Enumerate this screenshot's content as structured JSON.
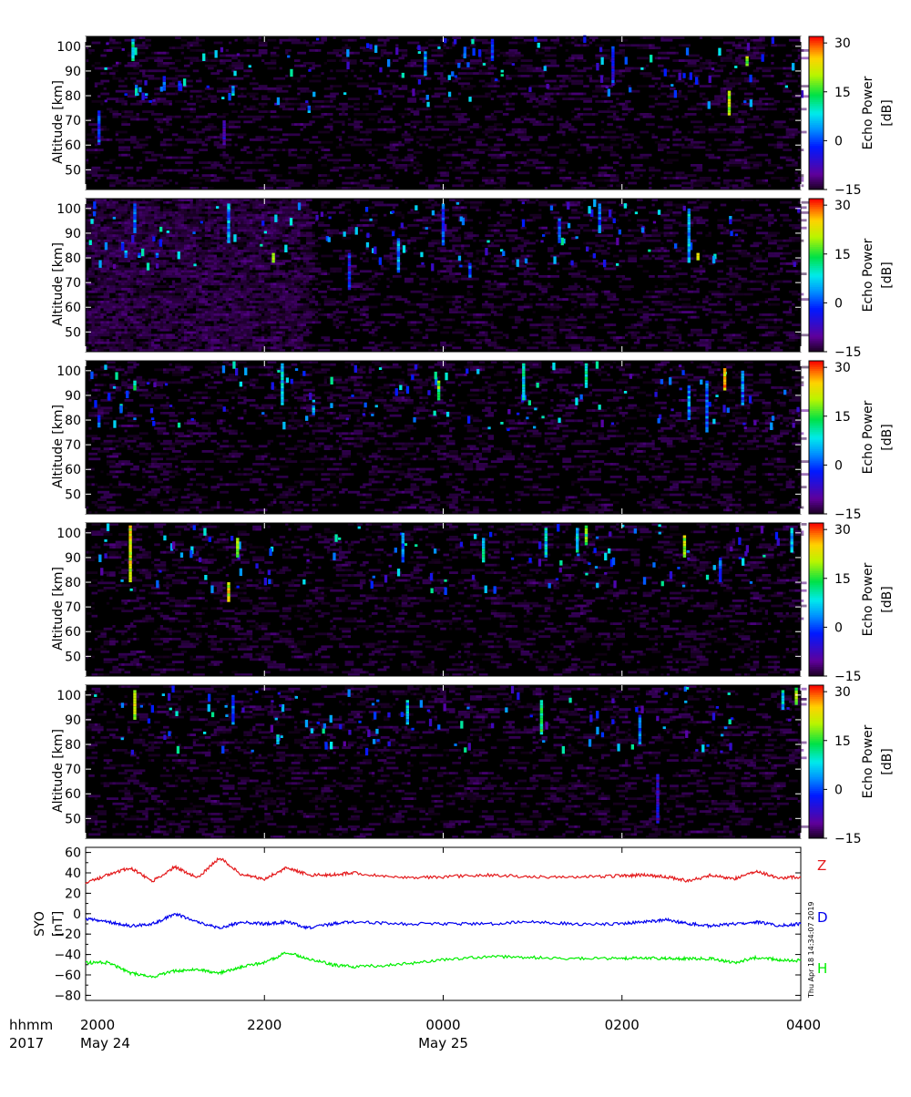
{
  "chart_data": [
    {
      "type": "heatmap",
      "panel": 1,
      "ylabel": "Altitude [km]",
      "ylim": [
        42,
        104
      ],
      "yticks": [
        50,
        60,
        70,
        80,
        90,
        100
      ],
      "colorbar": {
        "label_line1": "Echo Power",
        "label_line2": "[dB]",
        "range": [
          -15,
          32
        ],
        "ticks": [
          -15,
          0,
          15,
          30
        ]
      },
      "features": [
        {
          "time": 20.15,
          "alt": [
            60,
            74
          ],
          "db": 3
        },
        {
          "time": 20.45,
          "alt": [
            80,
            81
          ],
          "db": 5
        },
        {
          "time": 20.58,
          "alt": [
            80,
            81
          ],
          "db": 10
        },
        {
          "time": 20.68,
          "alt": [
            80,
            81
          ],
          "db": 8
        },
        {
          "time": 20.53,
          "alt": [
            94,
            103
          ],
          "db": 14
        },
        {
          "time": 20.88,
          "alt": [
            82,
            88
          ],
          "db": 5
        },
        {
          "time": 21.05,
          "alt": [
            82,
            86
          ],
          "db": 6
        },
        {
          "time": 21.55,
          "alt": [
            60,
            70
          ],
          "db": -3
        },
        {
          "time": 21.65,
          "alt": [
            80,
            84
          ],
          "db": 10
        },
        {
          "time": 22.5,
          "alt": [
            73,
            76
          ],
          "db": 8
        },
        {
          "time": 23.8,
          "alt": [
            88,
            98
          ],
          "db": 7
        },
        {
          "time": 24.55,
          "alt": [
            94,
            103
          ],
          "db": 4
        },
        {
          "time": 25.9,
          "alt": [
            84,
            100
          ],
          "db": 2
        },
        {
          "time": 27.2,
          "alt": [
            72,
            82
          ],
          "db": 26
        },
        {
          "time": 27.4,
          "alt": [
            92,
            96
          ],
          "db": 25
        }
      ]
    },
    {
      "type": "heatmap",
      "panel": 2,
      "ylabel": "Altitude [km]",
      "ylim": [
        42,
        104
      ],
      "yticks": [
        50,
        60,
        70,
        80,
        90,
        100
      ],
      "colorbar": {
        "label_line1": "Echo Power",
        "label_line2": "[dB]",
        "range": [
          -15,
          32
        ],
        "ticks": [
          -15,
          0,
          15,
          30
        ]
      },
      "features": [
        {
          "time": 20.45,
          "alt": [
            80,
            83
          ],
          "db": 10
        },
        {
          "time": 20.6,
          "alt": [
            80,
            82
          ],
          "db": 8
        },
        {
          "time": 20.8,
          "alt": [
            80,
            82
          ],
          "db": 6
        },
        {
          "time": 20.55,
          "alt": [
            90,
            102
          ],
          "db": 6
        },
        {
          "time": 21.6,
          "alt": [
            86,
            102
          ],
          "db": 9
        },
        {
          "time": 22.1,
          "alt": [
            78,
            82
          ],
          "db": 22
        },
        {
          "time": 22.95,
          "alt": [
            67,
            82
          ],
          "db": 2
        },
        {
          "time": 23.5,
          "alt": [
            74,
            88
          ],
          "db": 8
        },
        {
          "time": 24.0,
          "alt": [
            85,
            102
          ],
          "db": 5
        },
        {
          "time": 24.3,
          "alt": [
            72,
            78
          ],
          "db": 4
        },
        {
          "time": 25.3,
          "alt": [
            86,
            96
          ],
          "db": 4
        },
        {
          "time": 25.75,
          "alt": [
            90,
            102
          ],
          "db": 7
        },
        {
          "time": 26.75,
          "alt": [
            78,
            100
          ],
          "db": 10
        },
        {
          "time": 26.85,
          "alt": [
            79,
            82
          ],
          "db": 25
        }
      ]
    },
    {
      "type": "heatmap",
      "panel": 3,
      "ylabel": "Altitude [km]",
      "ylim": [
        42,
        104
      ],
      "yticks": [
        50,
        60,
        70,
        80,
        90,
        100
      ],
      "colorbar": {
        "label_line1": "Echo Power",
        "label_line2": "[dB]",
        "range": [
          -15,
          32
        ],
        "ticks": [
          -15,
          0,
          15,
          30
        ]
      },
      "features": [
        {
          "time": 20.15,
          "alt": [
            77,
            82
          ],
          "db": 5
        },
        {
          "time": 20.55,
          "alt": [
            80,
            81
          ],
          "db": 4
        },
        {
          "time": 20.75,
          "alt": [
            80,
            81
          ],
          "db": 3
        },
        {
          "time": 20.55,
          "alt": [
            92,
            96
          ],
          "db": 16
        },
        {
          "time": 22.2,
          "alt": [
            86,
            103
          ],
          "db": 12
        },
        {
          "time": 22.55,
          "alt": [
            82,
            86
          ],
          "db": 11
        },
        {
          "time": 23.95,
          "alt": [
            88,
            96
          ],
          "db": 20
        },
        {
          "time": 24.9,
          "alt": [
            88,
            103
          ],
          "db": 13
        },
        {
          "time": 25.6,
          "alt": [
            93,
            103
          ],
          "db": 14
        },
        {
          "time": 26.75,
          "alt": [
            80,
            94
          ],
          "db": 8
        },
        {
          "time": 26.95,
          "alt": [
            75,
            96
          ],
          "db": 5
        },
        {
          "time": 27.15,
          "alt": [
            92,
            101
          ],
          "db": 30
        },
        {
          "time": 27.35,
          "alt": [
            86,
            100
          ],
          "db": 6
        }
      ]
    },
    {
      "type": "heatmap",
      "panel": 4,
      "ylabel": "Altitude [km]",
      "ylim": [
        42,
        104
      ],
      "yticks": [
        50,
        60,
        70,
        80,
        90,
        100
      ],
      "colorbar": {
        "label_line1": "Echo Power",
        "label_line2": "[dB]",
        "range": [
          -15,
          32
        ],
        "ticks": [
          -15,
          0,
          15,
          30
        ]
      },
      "features": [
        {
          "time": 20.5,
          "alt": [
            80,
            103
          ],
          "db": 27
        },
        {
          "time": 21.6,
          "alt": [
            72,
            80
          ],
          "db": 28
        },
        {
          "time": 21.7,
          "alt": [
            90,
            98
          ],
          "db": 22
        },
        {
          "time": 23.55,
          "alt": [
            88,
            100
          ],
          "db": 7
        },
        {
          "time": 24.45,
          "alt": [
            88,
            98
          ],
          "db": 14
        },
        {
          "time": 25.15,
          "alt": [
            90,
            102
          ],
          "db": 12
        },
        {
          "time": 25.5,
          "alt": [
            92,
            102
          ],
          "db": 13
        },
        {
          "time": 25.6,
          "alt": [
            95,
            103
          ],
          "db": 20
        },
        {
          "time": 26.7,
          "alt": [
            90,
            99
          ],
          "db": 26
        },
        {
          "time": 27.1,
          "alt": [
            80,
            90
          ],
          "db": 4
        },
        {
          "time": 27.9,
          "alt": [
            92,
            102
          ],
          "db": 10
        }
      ]
    },
    {
      "type": "heatmap",
      "panel": 5,
      "ylabel": "Altitude [km]",
      "ylim": [
        42,
        104
      ],
      "yticks": [
        50,
        60,
        70,
        80,
        90,
        100
      ],
      "colorbar": {
        "label_line1": "Echo Power",
        "label_line2": "[dB]",
        "range": [
          -15,
          32
        ],
        "ticks": [
          -15,
          0,
          15,
          30
        ]
      },
      "features": [
        {
          "time": 20.55,
          "alt": [
            90,
            102
          ],
          "db": 25
        },
        {
          "time": 21.65,
          "alt": [
            88,
            100
          ],
          "db": 6
        },
        {
          "time": 22.15,
          "alt": [
            80,
            84
          ],
          "db": 10
        },
        {
          "time": 23.6,
          "alt": [
            88,
            98
          ],
          "db": 10
        },
        {
          "time": 25.1,
          "alt": [
            84,
            98
          ],
          "db": 18
        },
        {
          "time": 26.2,
          "alt": [
            80,
            92
          ],
          "db": 6
        },
        {
          "time": 26.4,
          "alt": [
            48,
            68
          ],
          "db": -2
        },
        {
          "time": 27.8,
          "alt": [
            94,
            102
          ],
          "db": 12
        },
        {
          "time": 27.95,
          "alt": [
            96,
            103
          ],
          "db": 24
        }
      ]
    },
    {
      "type": "line",
      "panel": 6,
      "ylabel_line1": "SYO",
      "ylabel_line2": "[nT]",
      "ylim": [
        -85,
        65
      ],
      "yticks": [
        -80,
        -60,
        -40,
        -20,
        0,
        20,
        40,
        60
      ],
      "series": [
        {
          "name": "Z",
          "color": "#e41a1c",
          "x": [
            20.0,
            20.25,
            20.5,
            20.75,
            21.0,
            21.25,
            21.5,
            21.75,
            22.0,
            22.25,
            22.5,
            22.75,
            23.0,
            23.5,
            24.0,
            24.5,
            25.0,
            25.5,
            26.0,
            26.25,
            26.5,
            26.75,
            27.0,
            27.25,
            27.5,
            27.75,
            28.0
          ],
          "y": [
            30,
            38,
            45,
            32,
            46,
            35,
            55,
            38,
            34,
            45,
            38,
            38,
            40,
            35,
            36,
            38,
            36,
            36,
            37,
            38,
            36,
            32,
            38,
            34,
            42,
            35,
            36
          ]
        },
        {
          "name": "D",
          "color": "#0000ee",
          "x": [
            20.0,
            20.25,
            20.5,
            20.75,
            21.0,
            21.25,
            21.5,
            21.75,
            22.0,
            22.25,
            22.5,
            22.75,
            23.0,
            23.5,
            24.0,
            24.5,
            25.0,
            25.5,
            26.0,
            26.25,
            26.5,
            26.75,
            27.0,
            27.25,
            27.5,
            27.75,
            28.0
          ],
          "y": [
            -5,
            -8,
            -12,
            -10,
            0,
            -8,
            -14,
            -8,
            -10,
            -8,
            -14,
            -10,
            -8,
            -10,
            -10,
            -10,
            -8,
            -10,
            -10,
            -8,
            -6,
            -10,
            -12,
            -10,
            -8,
            -12,
            -10
          ]
        },
        {
          "name": "H",
          "color": "#00ee00",
          "x": [
            20.0,
            20.25,
            20.5,
            20.75,
            21.0,
            21.25,
            21.5,
            21.75,
            22.0,
            22.25,
            22.5,
            22.75,
            23.0,
            23.5,
            24.0,
            24.5,
            25.0,
            25.5,
            26.0,
            26.25,
            26.5,
            26.75,
            27.0,
            27.25,
            27.5,
            27.75,
            28.0
          ],
          "y": [
            -48,
            -48,
            -58,
            -62,
            -56,
            -55,
            -58,
            -52,
            -48,
            -38,
            -44,
            -50,
            -52,
            -50,
            -45,
            -42,
            -43,
            -44,
            -44,
            -43,
            -44,
            -44,
            -44,
            -48,
            -43,
            -45,
            -46
          ]
        }
      ]
    }
  ],
  "xaxis": {
    "xlim": [
      20,
      28
    ],
    "ticks": [
      {
        "value": 20,
        "label": "2000",
        "sub": "May 24"
      },
      {
        "value": 22,
        "label": "2200",
        "sub": ""
      },
      {
        "value": 24,
        "label": "0000",
        "sub": "May 25"
      },
      {
        "value": 26,
        "label": "0200",
        "sub": ""
      },
      {
        "value": 28,
        "label": "0400",
        "sub": ""
      }
    ],
    "prefix_line1": "hhmm",
    "prefix_line2": "2017"
  },
  "timestamp": "Thu Apr 18 14:34:07 2019",
  "colors": {
    "axis": "#000000",
    "background": "#000000"
  }
}
